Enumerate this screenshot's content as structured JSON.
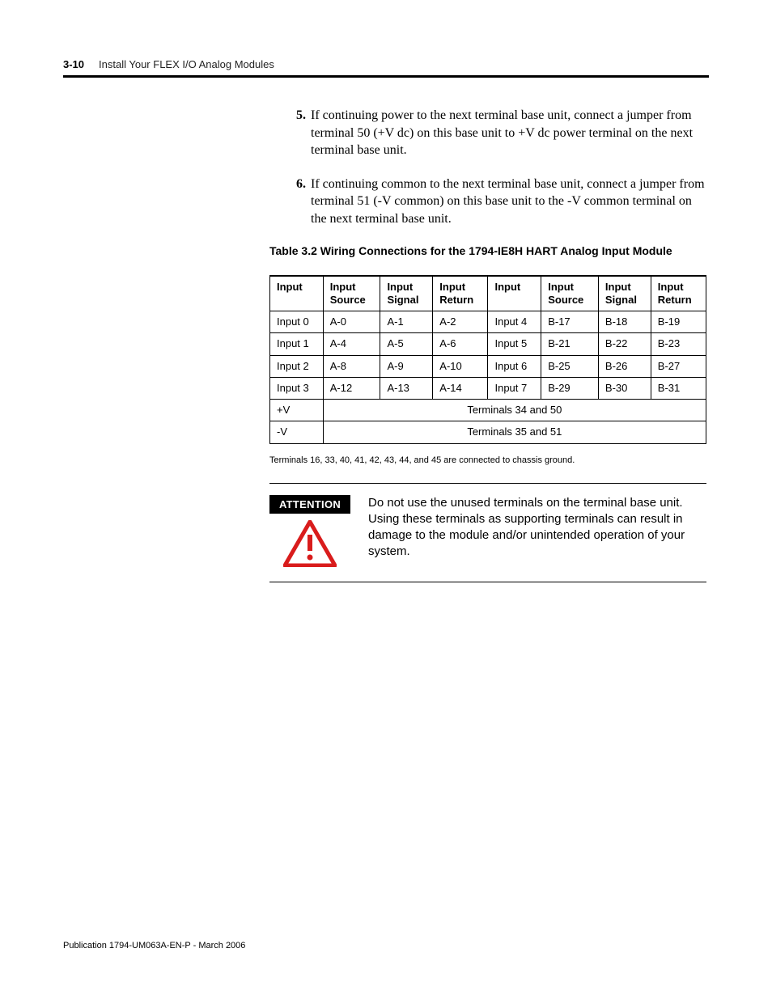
{
  "page": {
    "number": "3-10",
    "title": "Install Your FLEX I/O Analog Modules"
  },
  "steps": [
    {
      "num": "5.",
      "text": "If continuing power to the next terminal base unit, connect a jumper from terminal 50 (+V dc) on this base unit to +V dc power terminal on the next terminal base unit."
    },
    {
      "num": "6.",
      "text": "If continuing common to the next terminal base unit, connect a jumper from terminal 51 (-V common) on this base unit to the -V common terminal on the next terminal base unit."
    }
  ],
  "table": {
    "caption": "Table 3.2 Wiring Connections for the 1794-IE8H HART Analog Input Module",
    "headers": [
      "Input",
      "Input Source",
      "Input Signal",
      "Input Return",
      "Input",
      "Input Source",
      "Input Signal",
      "Input Return"
    ],
    "rows": [
      [
        "Input 0",
        "A-0",
        "A-1",
        "A-2",
        "Input 4",
        "B-17",
        "B-18",
        "B-19"
      ],
      [
        "Input 1",
        "A-4",
        "A-5",
        "A-6",
        "Input 5",
        "B-21",
        "B-22",
        "B-23"
      ],
      [
        "Input 2",
        "A-8",
        "A-9",
        "A-10",
        "Input 6",
        "B-25",
        "B-26",
        "B-27"
      ],
      [
        "Input 3",
        "A-12",
        "A-13",
        "A-14",
        "Input 7",
        "B-29",
        "B-30",
        "B-31"
      ]
    ],
    "span_rows": [
      {
        "label": "+V",
        "value": "Terminals 34 and 50"
      },
      {
        "label": "-V",
        "value": "Terminals 35 and 51"
      }
    ],
    "footnote": "Terminals 16, 33, 40, 41, 42, 43, 44, and 45 are connected to chassis ground."
  },
  "attention": {
    "label": "ATTENTION",
    "text": "Do not use the unused terminals on the terminal base unit. Using these terminals as supporting terminals can result in damage to the module and/or unintended operation of your system.",
    "icon_color": "#d91c1c"
  },
  "footer": "Publication 1794-UM063A-EN-P - March 2006"
}
